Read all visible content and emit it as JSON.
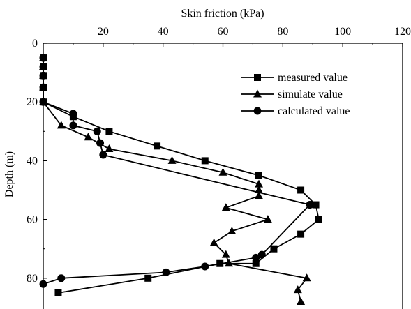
{
  "chart_data": {
    "type": "line",
    "xlabel": "Skin friction (kPa)",
    "ylabel": "Depth (m)",
    "xlim": [
      0,
      120
    ],
    "ylim": [
      0,
      90
    ],
    "y_inverted": true,
    "x_axis_position": "top",
    "x_ticks": [
      "20",
      "40",
      "60",
      "80",
      "100",
      "120"
    ],
    "y_ticks": [
      "0",
      "20",
      "40",
      "60",
      "80"
    ],
    "legend_position": "top-right",
    "series": [
      {
        "name": "measured value",
        "marker": "square",
        "x": [
          0,
          0,
          0,
          0,
          0,
          10,
          22,
          38,
          54,
          72,
          86,
          91,
          92,
          86,
          77,
          71,
          59,
          35,
          5
        ],
        "y": [
          5,
          8,
          11,
          15,
          20,
          25,
          30,
          35,
          40,
          45,
          50,
          55,
          60,
          65,
          70,
          75,
          75,
          80,
          85
        ]
      },
      {
        "name": "simulate value",
        "marker": "triangle",
        "x": [
          0,
          0,
          0,
          0,
          0,
          6,
          15,
          22,
          43,
          60,
          72,
          72,
          72,
          61,
          75,
          63,
          57,
          61,
          62,
          88,
          85,
          86
        ],
        "y": [
          5,
          8,
          11,
          15,
          20,
          28,
          32,
          36,
          40,
          44,
          48,
          50,
          52,
          56,
          60,
          64,
          68,
          72,
          75,
          80,
          84,
          88
        ]
      },
      {
        "name": "calculated value",
        "marker": "circle",
        "x": [
          0,
          0,
          0,
          0,
          0,
          10,
          10,
          18,
          19,
          20,
          89,
          73,
          71,
          54,
          41,
          6,
          0
        ],
        "y": [
          5,
          8,
          11,
          15,
          20,
          24,
          28,
          30,
          34,
          38,
          55,
          72,
          73,
          76,
          78,
          80,
          82
        ]
      }
    ]
  }
}
